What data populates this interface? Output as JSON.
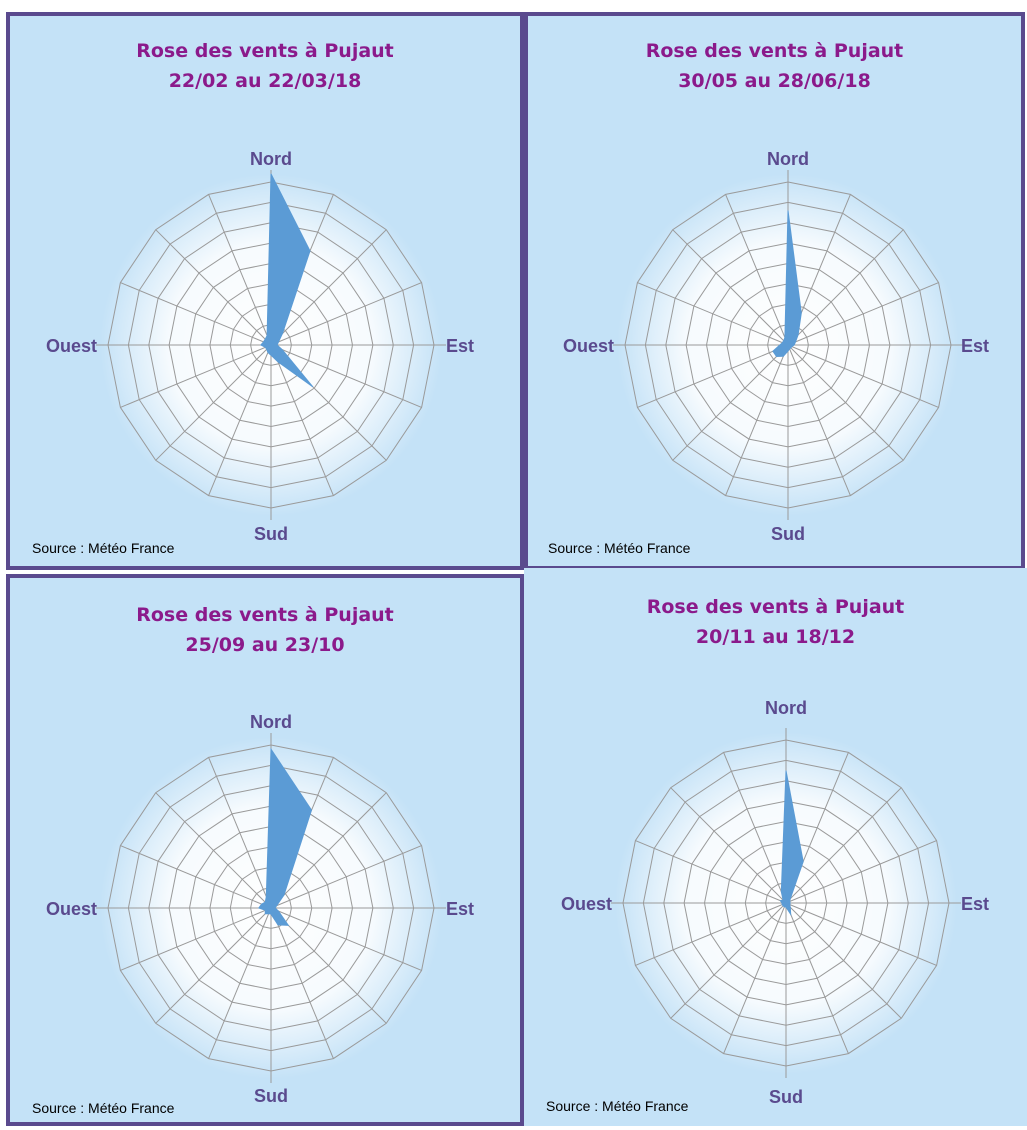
{
  "colors": {
    "panel_bg": "#c4e2f7",
    "panel_border": "#5a4a8e",
    "title": "#8b1a8b",
    "direction_label": "#5a4a8e",
    "grid": "#9a9a9a",
    "series_fill": "#5b9bd5"
  },
  "chart_data": [
    {
      "type": "radar",
      "title": "Rose des vents à Pujaut",
      "subtitle": "22/02 au 22/03/18",
      "source": "Source : Météo France",
      "direction_labels": {
        "north": "Nord",
        "east": "Est",
        "south": "Sud",
        "west": "Ouest"
      },
      "sectors": 16,
      "rings": 8,
      "grid": true,
      "angles_deg": [
        0,
        22.5,
        45,
        67.5,
        90,
        112.5,
        135,
        157.5,
        180,
        202.5,
        225,
        247.5,
        270,
        292.5,
        315,
        337.5
      ],
      "values": [
        8.4,
        5.0,
        0.8,
        0.4,
        0.3,
        0.6,
        2.9,
        0.9,
        0.5,
        0.4,
        0.3,
        0.3,
        0.5,
        0.4,
        0.4,
        0.5
      ]
    },
    {
      "type": "radar",
      "title": "Rose des vents à Pujaut",
      "subtitle": "30/05 au 28/06/18",
      "source": "Source : Météo France",
      "direction_labels": {
        "north": "Nord",
        "east": "Est",
        "south": "Sud",
        "west": "Ouest"
      },
      "sectors": 16,
      "rings": 8,
      "grid": true,
      "angles_deg": [
        0,
        22.5,
        45,
        67.5,
        90,
        112.5,
        135,
        157.5,
        180,
        202.5,
        225,
        247.5,
        270,
        292.5,
        315,
        337.5
      ],
      "values": [
        6.6,
        1.7,
        0.7,
        0.4,
        0.3,
        0.2,
        0.2,
        0.2,
        0.3,
        0.6,
        0.8,
        0.8,
        0.4,
        0.3,
        0.3,
        0.4
      ]
    },
    {
      "type": "radar",
      "title": "Rose des vents à Pujaut",
      "subtitle": "25/09 au 23/10",
      "source": "Source : Météo France",
      "direction_labels": {
        "north": "Nord",
        "east": "Est",
        "south": "Sud",
        "west": "Ouest"
      },
      "sectors": 16,
      "rings": 8,
      "grid": true,
      "angles_deg": [
        0,
        22.5,
        45,
        67.5,
        90,
        112.5,
        135,
        157.5,
        180,
        202.5,
        225,
        247.5,
        270,
        292.5,
        315,
        337.5
      ],
      "values": [
        7.8,
        5.2,
        0.9,
        0.3,
        0.2,
        0.4,
        1.2,
        0.9,
        0.3,
        0.3,
        0.4,
        0.3,
        0.6,
        0.5,
        0.4,
        0.6
      ]
    },
    {
      "type": "radar",
      "title": "Rose des vents à Pujaut",
      "subtitle": "20/11 au 18/12",
      "source": "Source : Météo France",
      "direction_labels": {
        "north": "Nord",
        "east": "Est",
        "south": "Sud",
        "west": "Ouest"
      },
      "sectors": 16,
      "rings": 8,
      "grid": true,
      "angles_deg": [
        0,
        22.5,
        45,
        67.5,
        90,
        112.5,
        135,
        157.5,
        180,
        202.5,
        225,
        247.5,
        270,
        292.5,
        315,
        337.5
      ],
      "values": [
        6.5,
        2.2,
        0.3,
        0.2,
        0.2,
        0.2,
        0.3,
        0.6,
        0.2,
        0.2,
        0.2,
        0.2,
        0.2,
        0.3,
        0.2,
        0.6
      ]
    }
  ]
}
